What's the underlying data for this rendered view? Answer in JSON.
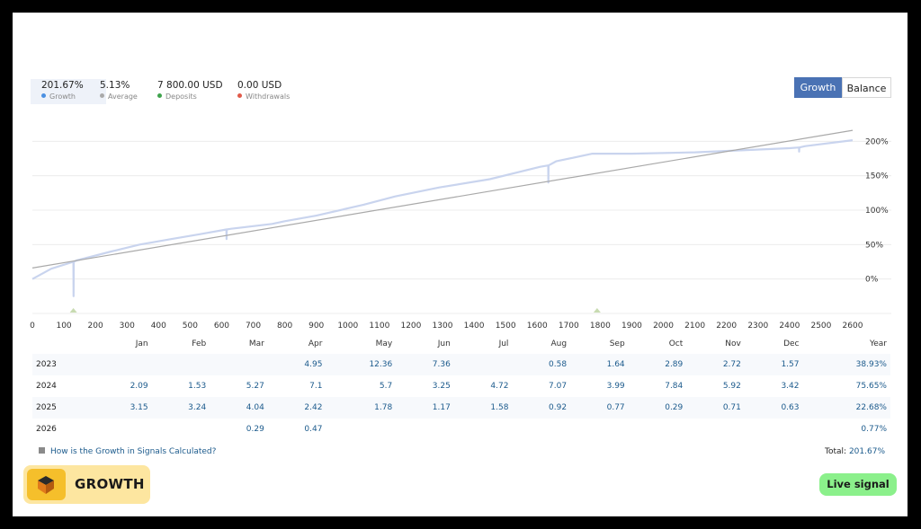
{
  "stats": {
    "growth": {
      "value": "201.67%",
      "label": "Growth",
      "color": "#4a90e2"
    },
    "average": {
      "value": "5.13%",
      "label": "Average",
      "color": "#aaaaaa"
    },
    "deposits": {
      "value": "7 800.00 USD",
      "label": "Deposits",
      "color": "#3fa34d"
    },
    "withdrawals": {
      "value": "0.00 USD",
      "label": "Withdrawals",
      "color": "#e05a4a"
    }
  },
  "toggle": {
    "growth_label": "Growth",
    "balance_label": "Balance",
    "active": "Growth"
  },
  "chart_data": {
    "type": "line",
    "x_ticks": [
      "0",
      "100",
      "200",
      "300",
      "400",
      "500",
      "600",
      "700",
      "800",
      "900",
      "1000",
      "1100",
      "1200",
      "1300",
      "1400",
      "1500",
      "1600",
      "1700",
      "1800",
      "1900",
      "2000",
      "2100",
      "2200",
      "2300",
      "2400",
      "2500",
      "2600"
    ],
    "y_ticks": [
      "0%",
      "50%",
      "100%",
      "150%",
      "200%"
    ],
    "xlim": [
      0,
      2600
    ],
    "ylim": [
      -50,
      250
    ],
    "series": [
      {
        "color": "#c9d4ee",
        "x": [
          0,
          60,
          130,
          130.5,
          131,
          140,
          250,
          340,
          440,
          530,
          615,
          615.5,
          616,
          630,
          760,
          800,
          900,
          1050,
          1150,
          1290,
          1450,
          1610,
          1635,
          1635.5,
          1636,
          1660,
          1775,
          1900,
          2100,
          2400,
          2430,
          2430.5,
          2431,
          2450,
          2600
        ],
        "y": [
          0,
          15,
          25,
          -25,
          25,
          27,
          40,
          50,
          58,
          65,
          72,
          58,
          72,
          73,
          80,
          84,
          92,
          108,
          120,
          133,
          145,
          163,
          165,
          140,
          165,
          171,
          182,
          182,
          184,
          190,
          191,
          185,
          191,
          193,
          201.67
        ]
      },
      {
        "color": "#a9a9a9",
        "x": [
          0,
          2600
        ],
        "y": [
          16,
          216
        ]
      }
    ],
    "markers": [
      {
        "x": 130,
        "color": "#c8dbb1"
      },
      {
        "x": 1790,
        "color": "#c8dbb1"
      }
    ]
  },
  "table": {
    "headers": [
      "",
      "Jan",
      "Feb",
      "Mar",
      "Apr",
      "May",
      "Jun",
      "Jul",
      "Aug",
      "Sep",
      "Oct",
      "Nov",
      "Dec",
      "Year"
    ],
    "rows": [
      [
        "2023",
        "",
        "",
        "",
        "4.95",
        "12.36",
        "7.36",
        "",
        "0.58",
        "1.64",
        "2.89",
        "2.72",
        "1.57",
        "38.93%"
      ],
      [
        "2024",
        "2.09",
        "1.53",
        "5.27",
        "7.1",
        "5.7",
        "3.25",
        "4.72",
        "7.07",
        "3.99",
        "7.84",
        "5.92",
        "3.42",
        "75.65%"
      ],
      [
        "2025",
        "3.15",
        "3.24",
        "4.04",
        "2.42",
        "1.78",
        "1.17",
        "1.58",
        "0.92",
        "0.77",
        "0.29",
        "0.71",
        "0.63",
        "22.68%"
      ],
      [
        "2026",
        "",
        "",
        "0.29",
        "0.47",
        "",
        "",
        "",
        "",
        "",
        "",
        "",
        "",
        "0.77%"
      ]
    ]
  },
  "footer": {
    "howto": "How is the Growth in Signals Calculated?",
    "total_label": "Total:",
    "total_value": "201.67%"
  },
  "logo": {
    "text": "GROWTH"
  },
  "live": {
    "label": "Live signal"
  }
}
